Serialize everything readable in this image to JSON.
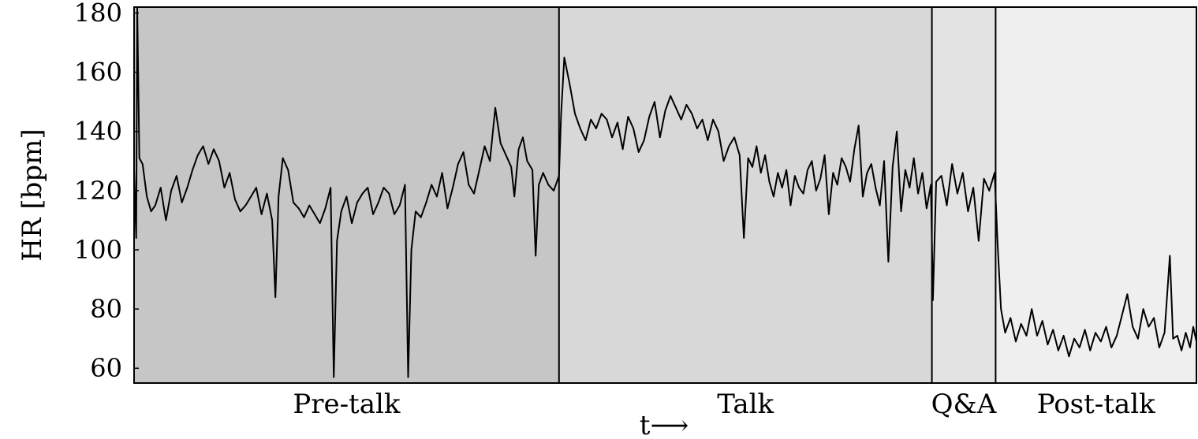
{
  "chart_data": {
    "type": "line",
    "title": "",
    "xlabel": "t⟶",
    "ylabel": "HR [bpm]",
    "ylim": [
      55,
      182
    ],
    "xlim": [
      0,
      1
    ],
    "yticks": [
      60,
      80,
      100,
      120,
      140,
      160,
      180
    ],
    "ytick_labels": [
      "60",
      "80",
      "100",
      "120",
      "140",
      "160",
      "180"
    ],
    "grid": false,
    "legend": "none",
    "phases": [
      {
        "label": "Pre-talk",
        "start": 0.0,
        "end": 0.4,
        "color": "#c6c6c6"
      },
      {
        "label": "Talk",
        "start": 0.4,
        "end": 0.751,
        "color": "#d8d8d8"
      },
      {
        "label": "Q&A",
        "start": 0.751,
        "end": 0.811,
        "color": "#e3e3e3"
      },
      {
        "label": "Post-talk",
        "start": 0.811,
        "end": 1.0,
        "color": "#efefef"
      }
    ],
    "series": [
      {
        "color": "#000000",
        "points": [
          [
            0.0,
            127
          ],
          [
            0.002,
            104
          ],
          [
            0.003,
            182
          ],
          [
            0.005,
            131
          ],
          [
            0.008,
            129
          ],
          [
            0.012,
            118
          ],
          [
            0.016,
            113
          ],
          [
            0.02,
            115
          ],
          [
            0.025,
            121
          ],
          [
            0.03,
            110
          ],
          [
            0.035,
            120
          ],
          [
            0.04,
            125
          ],
          [
            0.045,
            116
          ],
          [
            0.05,
            121
          ],
          [
            0.055,
            127
          ],
          [
            0.06,
            132
          ],
          [
            0.065,
            135
          ],
          [
            0.07,
            129
          ],
          [
            0.075,
            134
          ],
          [
            0.08,
            130
          ],
          [
            0.085,
            121
          ],
          [
            0.09,
            126
          ],
          [
            0.095,
            117
          ],
          [
            0.1,
            113
          ],
          [
            0.105,
            115
          ],
          [
            0.11,
            118
          ],
          [
            0.115,
            121
          ],
          [
            0.12,
            112
          ],
          [
            0.125,
            119
          ],
          [
            0.13,
            110
          ],
          [
            0.133,
            84
          ],
          [
            0.136,
            118
          ],
          [
            0.14,
            131
          ],
          [
            0.145,
            127
          ],
          [
            0.15,
            116
          ],
          [
            0.155,
            114
          ],
          [
            0.16,
            111
          ],
          [
            0.165,
            115
          ],
          [
            0.17,
            112
          ],
          [
            0.175,
            109
          ],
          [
            0.18,
            114
          ],
          [
            0.185,
            121
          ],
          [
            0.188,
            57
          ],
          [
            0.191,
            103
          ],
          [
            0.195,
            113
          ],
          [
            0.2,
            118
          ],
          [
            0.205,
            109
          ],
          [
            0.21,
            116
          ],
          [
            0.215,
            119
          ],
          [
            0.22,
            121
          ],
          [
            0.225,
            112
          ],
          [
            0.23,
            116
          ],
          [
            0.235,
            121
          ],
          [
            0.24,
            119
          ],
          [
            0.245,
            112
          ],
          [
            0.25,
            115
          ],
          [
            0.255,
            122
          ],
          [
            0.258,
            57
          ],
          [
            0.261,
            100
          ],
          [
            0.265,
            113
          ],
          [
            0.27,
            111
          ],
          [
            0.275,
            116
          ],
          [
            0.28,
            122
          ],
          [
            0.285,
            118
          ],
          [
            0.29,
            126
          ],
          [
            0.295,
            114
          ],
          [
            0.3,
            121
          ],
          [
            0.305,
            129
          ],
          [
            0.31,
            133
          ],
          [
            0.315,
            122
          ],
          [
            0.32,
            119
          ],
          [
            0.325,
            127
          ],
          [
            0.33,
            135
          ],
          [
            0.335,
            130
          ],
          [
            0.34,
            148
          ],
          [
            0.345,
            136
          ],
          [
            0.35,
            132
          ],
          [
            0.355,
            128
          ],
          [
            0.358,
            118
          ],
          [
            0.362,
            134
          ],
          [
            0.366,
            138
          ],
          [
            0.37,
            130
          ],
          [
            0.375,
            127
          ],
          [
            0.378,
            98
          ],
          [
            0.381,
            122
          ],
          [
            0.385,
            126
          ],
          [
            0.39,
            122
          ],
          [
            0.395,
            120
          ],
          [
            0.4,
            125
          ],
          [
            0.402,
            146
          ],
          [
            0.405,
            165
          ],
          [
            0.41,
            156
          ],
          [
            0.415,
            146
          ],
          [
            0.42,
            141
          ],
          [
            0.425,
            137
          ],
          [
            0.43,
            144
          ],
          [
            0.435,
            141
          ],
          [
            0.44,
            146
          ],
          [
            0.445,
            144
          ],
          [
            0.45,
            138
          ],
          [
            0.455,
            143
          ],
          [
            0.46,
            134
          ],
          [
            0.465,
            145
          ],
          [
            0.47,
            141
          ],
          [
            0.475,
            133
          ],
          [
            0.48,
            137
          ],
          [
            0.485,
            145
          ],
          [
            0.49,
            150
          ],
          [
            0.495,
            138
          ],
          [
            0.5,
            147
          ],
          [
            0.505,
            152
          ],
          [
            0.51,
            148
          ],
          [
            0.515,
            144
          ],
          [
            0.52,
            149
          ],
          [
            0.525,
            146
          ],
          [
            0.53,
            141
          ],
          [
            0.535,
            144
          ],
          [
            0.54,
            137
          ],
          [
            0.545,
            144
          ],
          [
            0.55,
            140
          ],
          [
            0.555,
            130
          ],
          [
            0.56,
            135
          ],
          [
            0.565,
            138
          ],
          [
            0.57,
            132
          ],
          [
            0.574,
            104
          ],
          [
            0.578,
            131
          ],
          [
            0.582,
            128
          ],
          [
            0.586,
            135
          ],
          [
            0.59,
            126
          ],
          [
            0.594,
            132
          ],
          [
            0.598,
            123
          ],
          [
            0.602,
            118
          ],
          [
            0.606,
            126
          ],
          [
            0.61,
            121
          ],
          [
            0.614,
            127
          ],
          [
            0.618,
            115
          ],
          [
            0.622,
            125
          ],
          [
            0.626,
            121
          ],
          [
            0.63,
            119
          ],
          [
            0.634,
            127
          ],
          [
            0.638,
            130
          ],
          [
            0.642,
            120
          ],
          [
            0.646,
            124
          ],
          [
            0.65,
            132
          ],
          [
            0.654,
            112
          ],
          [
            0.658,
            126
          ],
          [
            0.662,
            122
          ],
          [
            0.666,
            131
          ],
          [
            0.67,
            128
          ],
          [
            0.674,
            123
          ],
          [
            0.678,
            134
          ],
          [
            0.682,
            142
          ],
          [
            0.686,
            118
          ],
          [
            0.69,
            126
          ],
          [
            0.694,
            129
          ],
          [
            0.698,
            121
          ],
          [
            0.702,
            115
          ],
          [
            0.706,
            130
          ],
          [
            0.71,
            96
          ],
          [
            0.714,
            128
          ],
          [
            0.718,
            140
          ],
          [
            0.722,
            113
          ],
          [
            0.726,
            127
          ],
          [
            0.73,
            121
          ],
          [
            0.734,
            131
          ],
          [
            0.738,
            119
          ],
          [
            0.742,
            126
          ],
          [
            0.746,
            114
          ],
          [
            0.75,
            122
          ],
          [
            0.752,
            83
          ],
          [
            0.755,
            123
          ],
          [
            0.76,
            125
          ],
          [
            0.765,
            115
          ],
          [
            0.77,
            129
          ],
          [
            0.775,
            119
          ],
          [
            0.78,
            126
          ],
          [
            0.785,
            113
          ],
          [
            0.79,
            121
          ],
          [
            0.795,
            103
          ],
          [
            0.8,
            124
          ],
          [
            0.805,
            120
          ],
          [
            0.81,
            126
          ],
          [
            0.813,
            101
          ],
          [
            0.816,
            80
          ],
          [
            0.82,
            72
          ],
          [
            0.825,
            77
          ],
          [
            0.83,
            69
          ],
          [
            0.835,
            75
          ],
          [
            0.84,
            71
          ],
          [
            0.845,
            80
          ],
          [
            0.85,
            71
          ],
          [
            0.855,
            76
          ],
          [
            0.86,
            68
          ],
          [
            0.865,
            73
          ],
          [
            0.87,
            66
          ],
          [
            0.875,
            71
          ],
          [
            0.88,
            64
          ],
          [
            0.885,
            70
          ],
          [
            0.89,
            67
          ],
          [
            0.895,
            73
          ],
          [
            0.9,
            66
          ],
          [
            0.905,
            72
          ],
          [
            0.91,
            69
          ],
          [
            0.915,
            74
          ],
          [
            0.92,
            67
          ],
          [
            0.925,
            71
          ],
          [
            0.93,
            78
          ],
          [
            0.935,
            85
          ],
          [
            0.94,
            74
          ],
          [
            0.945,
            70
          ],
          [
            0.95,
            80
          ],
          [
            0.955,
            74
          ],
          [
            0.96,
            77
          ],
          [
            0.965,
            67
          ],
          [
            0.97,
            72
          ],
          [
            0.975,
            98
          ],
          [
            0.978,
            70
          ],
          [
            0.982,
            71
          ],
          [
            0.986,
            66
          ],
          [
            0.99,
            72
          ],
          [
            0.994,
            67
          ],
          [
            0.997,
            74
          ],
          [
            1.0,
            69
          ]
        ]
      }
    ]
  }
}
